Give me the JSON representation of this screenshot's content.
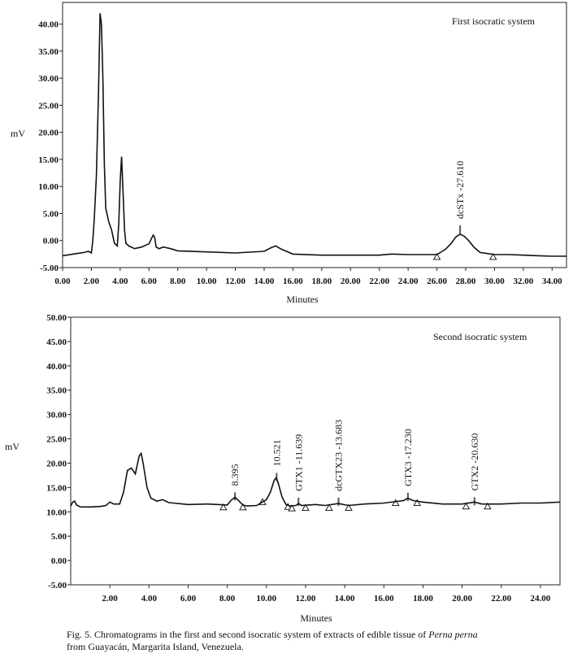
{
  "chart_data": [
    {
      "type": "line",
      "title": "",
      "annotation": "First isocratic system",
      "xlabel": "Minutes",
      "ylabel": "mV",
      "xlim": [
        0,
        35
      ],
      "ylim": [
        -5,
        44
      ],
      "x_ticks": [
        "0.00",
        "2.00",
        "4.00",
        "6.00",
        "8.00",
        "10.00",
        "12.00",
        "14.00",
        "16.00",
        "18.00",
        "20.00",
        "22.00",
        "24.00",
        "26.00",
        "28.00",
        "30.00",
        "32.00",
        "34.00"
      ],
      "y_ticks": [
        "-5.00",
        "0.00",
        "5.00",
        "10.00",
        "15.00",
        "20.00",
        "25.00",
        "30.00",
        "35.00",
        "40.00"
      ],
      "series": [
        {
          "x": [
            0,
            1,
            1.5,
            1.8,
            2.0,
            2.1,
            2.2,
            2.35,
            2.5,
            2.6,
            2.7,
            2.8,
            2.9,
            3.0,
            3.2,
            3.4,
            3.6,
            3.8,
            3.9,
            4.0,
            4.1,
            4.2,
            4.3,
            4.4,
            4.6,
            5.0,
            5.5,
            6.0,
            6.2,
            6.3,
            6.4,
            6.5,
            6.7,
            7.0,
            7.5,
            8.0,
            10,
            12,
            14,
            14.5,
            14.8,
            15.2,
            16,
            18,
            20,
            22,
            22.8,
            23,
            24,
            25,
            26,
            26.6,
            27,
            27.3,
            27.6,
            27.9,
            28.2,
            28.6,
            29,
            29.5,
            30,
            31,
            32,
            33,
            34,
            35
          ],
          "y": [
            -2.8,
            -2.4,
            -2.2,
            -2.0,
            -2.3,
            0,
            4.0,
            12,
            28,
            42,
            40,
            30,
            14,
            6,
            3.5,
            2.0,
            -0.5,
            -1.0,
            3,
            11,
            15.5,
            9,
            2,
            -0.5,
            -1.0,
            -1.5,
            -1.2,
            -0.6,
            0.5,
            1.0,
            0.5,
            -1.2,
            -1.5,
            -1.2,
            -1.5,
            -1.9,
            -2.1,
            -2.3,
            -2.0,
            -1.3,
            -1.0,
            -1.6,
            -2.5,
            -2.7,
            -2.7,
            -2.7,
            -2.5,
            -2.5,
            -2.6,
            -2.6,
            -2.6,
            -1.6,
            -0.5,
            0.6,
            1.2,
            0.8,
            0,
            -1.3,
            -2.2,
            -2.4,
            -2.6,
            -2.6,
            -2.7,
            -2.8,
            -2.9,
            -2.9
          ]
        }
      ],
      "peaks": [
        {
          "label": "dcSTx -27.610",
          "x": 27.61,
          "y": 1.9,
          "baseline": [
            26.0,
            29.9
          ]
        }
      ]
    },
    {
      "type": "line",
      "title": "",
      "annotation": "Second isocratic system",
      "xlabel": "Minutes",
      "ylabel": "mV",
      "xlim": [
        0,
        25
      ],
      "ylim": [
        -5,
        50
      ],
      "x_ticks": [
        "2.00",
        "4.00",
        "6.00",
        "8.00",
        "10.00",
        "12.00",
        "14.00",
        "16.00",
        "18.00",
        "20.00",
        "22.00",
        "24.00"
      ],
      "y_ticks": [
        "-5.00",
        "0.00",
        "5.00",
        "10.00",
        "15.00",
        "20.00",
        "25.00",
        "30.00",
        "35.00",
        "40.00",
        "45.00",
        "50.00"
      ],
      "series": [
        {
          "x": [
            0,
            0.1,
            0.2,
            0.3,
            0.5,
            1.0,
            1.5,
            1.8,
            2.0,
            2.2,
            2.5,
            2.7,
            2.9,
            3.1,
            3.3,
            3.5,
            3.6,
            3.7,
            3.9,
            4.1,
            4.4,
            4.7,
            5.0,
            6.0,
            7.0,
            8.0,
            8.2,
            8.4,
            8.6,
            8.8,
            9.0,
            9.5,
            10.0,
            10.2,
            10.4,
            10.5,
            10.6,
            10.8,
            11.0,
            11.2,
            11.5,
            11.64,
            11.8,
            12.5,
            13.0,
            13.68,
            14.2,
            15,
            16,
            17,
            17.23,
            17.5,
            18,
            19,
            20,
            20.63,
            21,
            22,
            23,
            24,
            25
          ],
          "y": [
            11.2,
            12.0,
            12.2,
            11.4,
            11.0,
            11.0,
            11.1,
            11.3,
            12.0,
            11.6,
            11.6,
            14.0,
            18.5,
            19.0,
            17.8,
            21.5,
            22.0,
            20.0,
            15.0,
            12.8,
            12.2,
            12.5,
            11.9,
            11.5,
            11.6,
            11.4,
            12.4,
            13.0,
            12.2,
            11.4,
            11.2,
            11.3,
            12.5,
            14.0,
            16.5,
            17.0,
            16.0,
            13.0,
            11.5,
            11.2,
            11.3,
            11.7,
            11.3,
            11.5,
            11.3,
            11.7,
            11.3,
            11.6,
            11.8,
            12.3,
            12.8,
            12.3,
            12.0,
            11.6,
            11.6,
            12.0,
            11.6,
            11.6,
            11.8,
            11.8,
            12.0
          ]
        }
      ],
      "peaks": [
        {
          "label": "8.395",
          "x": 8.395,
          "y": 13.0,
          "baseline": [
            7.8,
            8.8
          ]
        },
        {
          "label": "10.521",
          "x": 10.521,
          "y": 17.0,
          "baseline": [
            9.8,
            11.1
          ]
        },
        {
          "label": "GTX1 -11.639",
          "x": 11.639,
          "y": 11.9,
          "baseline": [
            11.3,
            12.0
          ]
        },
        {
          "label": "dcGTX23 -13.683",
          "x": 13.683,
          "y": 11.9,
          "baseline": [
            13.2,
            14.2
          ]
        },
        {
          "label": "GTX3 -17.230",
          "x": 17.23,
          "y": 12.9,
          "baseline": [
            16.6,
            17.7
          ]
        },
        {
          "label": "GTX2 -20.630",
          "x": 20.63,
          "y": 12.0,
          "baseline": [
            20.2,
            21.3
          ]
        }
      ]
    }
  ],
  "caption": {
    "line1_prefix": "Fig. 5. Chromatograms in the first and second  isocratic system of extracts of edible tissue of ",
    "line1_italic": "Perna perna",
    "line2": "from Guayacán, Margarita Island, Venezuela."
  }
}
